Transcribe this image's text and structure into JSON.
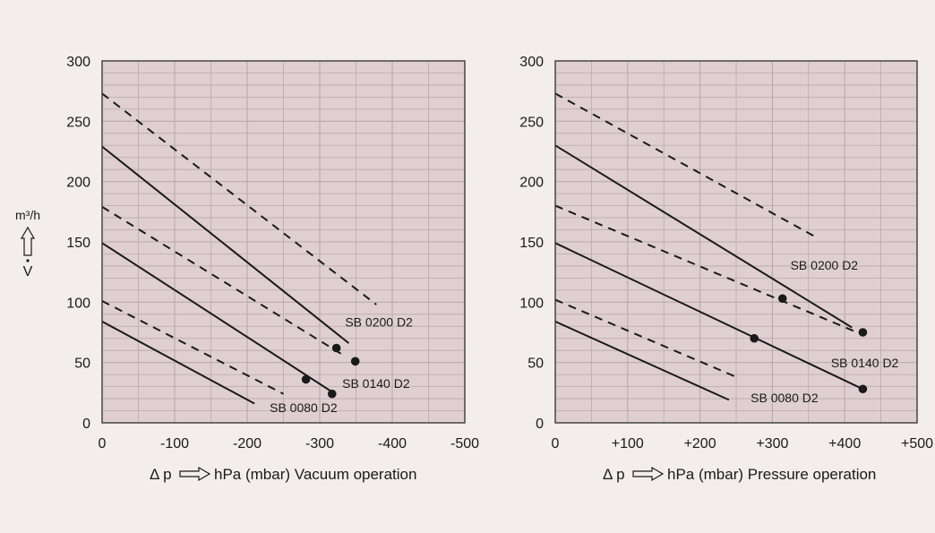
{
  "y_unit_label": "m³/h",
  "y_symbol": "V",
  "colors": {
    "plot_bg": "#dfcfd3",
    "grid": "#b9a9ad",
    "line": "#1a1a1a",
    "page_bg": "#f3eded"
  },
  "chart_data": [
    {
      "type": "line",
      "xlabel": "hPa (mbar) Vacuum operation",
      "xlabel_prefix": "Δ p",
      "xlim": [
        0,
        -500
      ],
      "ylim": [
        0,
        300
      ],
      "x_ticks": [
        0,
        -100,
        -200,
        -300,
        -400,
        -500
      ],
      "x_tick_labels": [
        "0",
        "-100",
        "-200",
        "-300",
        "-400",
        "-500"
      ],
      "y_ticks": [
        0,
        50,
        100,
        150,
        200,
        250,
        300
      ],
      "y_tick_labels": [
        "0",
        "50",
        "100",
        "150",
        "200",
        "250",
        "300"
      ],
      "grid": true,
      "series": [
        {
          "style": "solid",
          "x": [
            0,
            -210
          ],
          "y": [
            84,
            16
          ]
        },
        {
          "style": "dashed",
          "x": [
            0,
            -250
          ],
          "y": [
            101,
            24
          ]
        },
        {
          "style": "solid",
          "x": [
            0,
            -316
          ],
          "y": [
            149,
            26
          ]
        },
        {
          "style": "dashed",
          "x": [
            0,
            -330
          ],
          "y": [
            179,
            57
          ]
        },
        {
          "style": "solid",
          "x": [
            0,
            -340
          ],
          "y": [
            229,
            66
          ]
        },
        {
          "style": "dashed",
          "x": [
            0,
            -378
          ],
          "y": [
            273,
            98
          ]
        }
      ],
      "points": [
        {
          "x": -281,
          "y": 36
        },
        {
          "x": -317,
          "y": 24
        },
        {
          "x": -323,
          "y": 62
        },
        {
          "x": -349,
          "y": 51
        }
      ],
      "annotations": [
        {
          "text": "SB 0200 D2",
          "x": -335,
          "y": 80
        },
        {
          "text": "SB 0140 D2",
          "x": -331,
          "y": 29
        },
        {
          "text": "SB 0080 D2",
          "x": -231,
          "y": 9
        }
      ]
    },
    {
      "type": "line",
      "xlabel": "hPa (mbar) Pressure operation",
      "xlabel_prefix": "Δ p",
      "xlim": [
        0,
        500
      ],
      "ylim": [
        0,
        300
      ],
      "x_ticks": [
        0,
        100,
        200,
        300,
        400,
        500
      ],
      "x_tick_labels": [
        "0",
        "+100",
        "+200",
        "+300",
        "+400",
        "+500"
      ],
      "y_ticks": [
        0,
        50,
        100,
        150,
        200,
        250,
        300
      ],
      "y_tick_labels": [
        "0",
        "50",
        "100",
        "150",
        "200",
        "250",
        "300"
      ],
      "grid": true,
      "series": [
        {
          "style": "solid",
          "x": [
            0,
            240
          ],
          "y": [
            84,
            19
          ]
        },
        {
          "style": "dashed",
          "x": [
            0,
            250
          ],
          "y": [
            102,
            38
          ]
        },
        {
          "style": "solid",
          "x": [
            0,
            425
          ],
          "y": [
            149,
            28
          ]
        },
        {
          "style": "dashed",
          "x": [
            0,
            425
          ],
          "y": [
            180,
            73
          ]
        },
        {
          "style": "solid",
          "x": [
            0,
            410
          ],
          "y": [
            230,
            79
          ]
        },
        {
          "style": "dashed",
          "x": [
            0,
            360
          ],
          "y": [
            273,
            154
          ]
        }
      ],
      "points": [
        {
          "x": 314,
          "y": 103
        },
        {
          "x": 275,
          "y": 70
        },
        {
          "x": 425,
          "y": 75
        },
        {
          "x": 425,
          "y": 28
        }
      ],
      "annotations": [
        {
          "text": "SB 0200 D2",
          "x": 325,
          "y": 127
        },
        {
          "text": "SB 0140 D2",
          "x": 381,
          "y": 46
        },
        {
          "text": "SB 0080 D2",
          "x": 270,
          "y": 17
        }
      ]
    }
  ]
}
